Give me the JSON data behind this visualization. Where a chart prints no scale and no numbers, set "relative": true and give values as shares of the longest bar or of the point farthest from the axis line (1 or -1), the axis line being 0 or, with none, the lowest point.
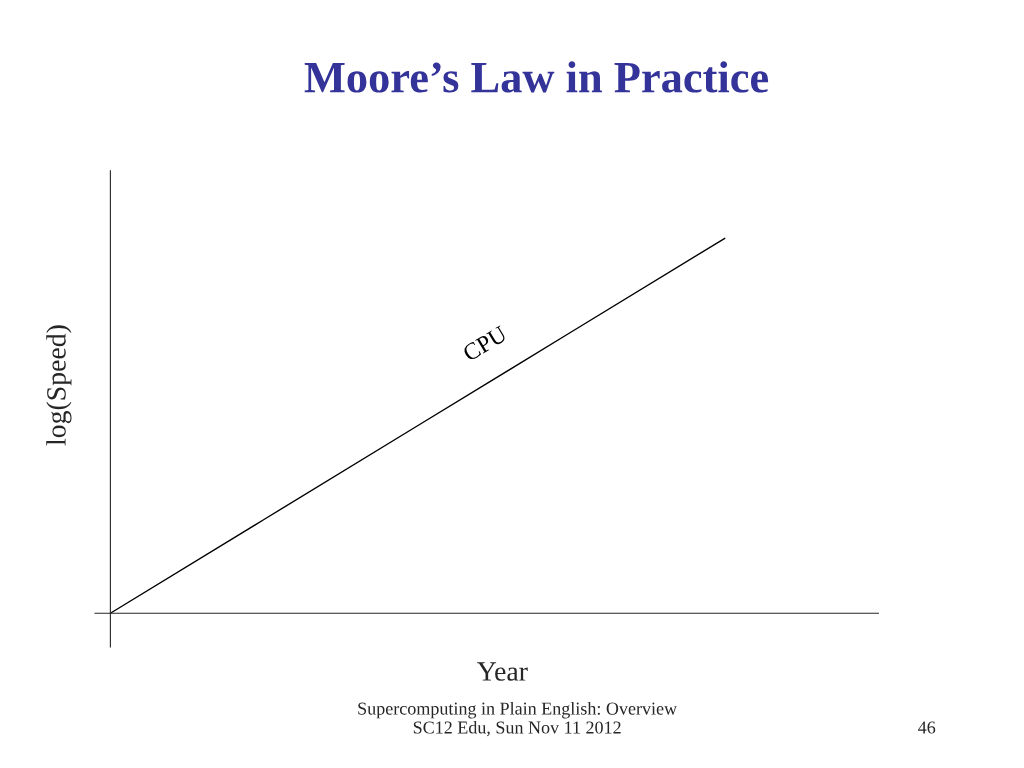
{
  "chart_data": {
    "type": "line",
    "title": "Moore’s Law in Practice",
    "xlabel": "Year",
    "ylabel": "log(Speed)",
    "relative": true,
    "categories": [
      null,
      null,
      null,
      null,
      null,
      null
    ],
    "series": [
      {
        "name": "CPU",
        "color": "#000000",
        "values": [
          0,
          0.25,
          0.5,
          0.75,
          1,
          null
        ]
      }
    ],
    "grid": false,
    "legend": false,
    "annotations": [
      "Supercomputing in Plain English: Overview\nSC12 Edu, Sun Nov 11 2012",
      "46"
    ]
  }
}
